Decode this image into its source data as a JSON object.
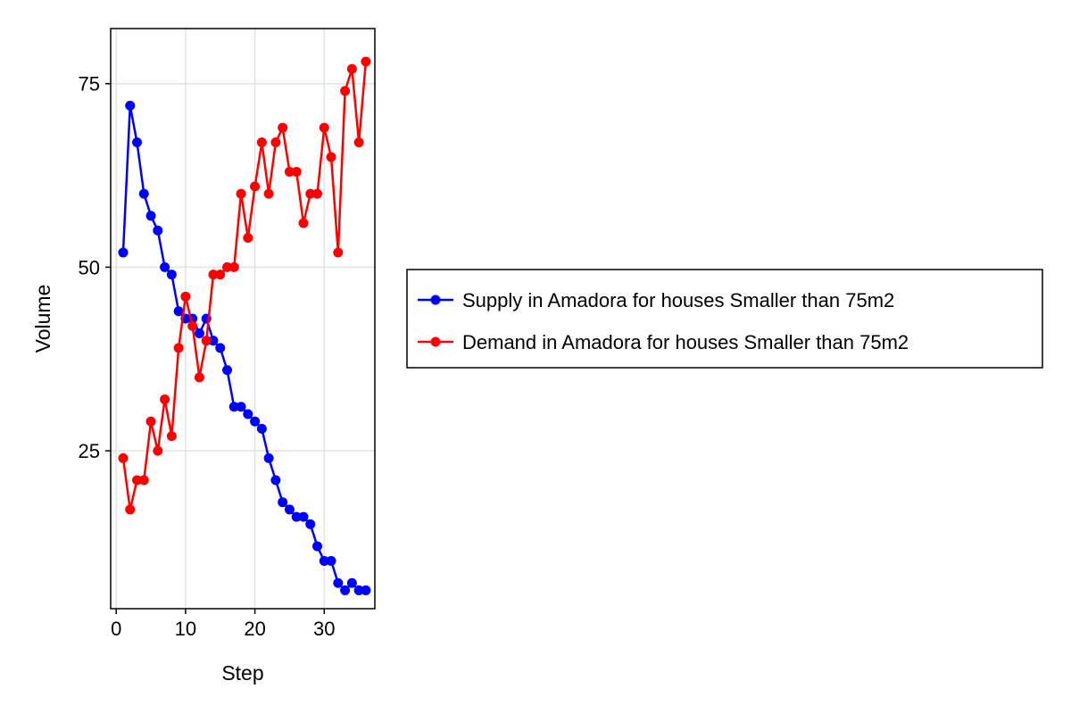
{
  "chart_data": {
    "type": "line",
    "xlabel": "Step",
    "ylabel": "Volume",
    "xlim": [
      -0.8,
      37.3
    ],
    "ylim": [
      3.5,
      82.5
    ],
    "xticks": [
      0,
      10,
      20,
      30
    ],
    "yticks": [
      25,
      50,
      75
    ],
    "grid": true,
    "legend_position": "right",
    "x": [
      1,
      2,
      3,
      4,
      5,
      6,
      7,
      8,
      9,
      10,
      11,
      12,
      13,
      14,
      15,
      16,
      17,
      18,
      19,
      20,
      21,
      22,
      23,
      24,
      25,
      26,
      27,
      28,
      29,
      30,
      31,
      32,
      33,
      34,
      35,
      36
    ],
    "series": [
      {
        "name": "Supply in Amadora for houses Smaller than 75m2",
        "color": "#0000ff",
        "values": [
          52,
          72,
          67,
          60,
          57,
          55,
          50,
          49,
          44,
          43,
          43,
          41,
          43,
          40,
          39,
          36,
          31,
          31,
          30,
          29,
          28,
          24,
          21,
          18,
          17,
          16,
          16,
          15,
          12,
          10,
          10,
          7,
          6,
          7,
          6,
          6
        ]
      },
      {
        "name": "Demand in Amadora for houses Smaller than 75m2",
        "color": "#ff0000",
        "values": [
          24,
          17,
          21,
          21,
          29,
          25,
          32,
          27,
          39,
          46,
          42,
          35,
          40,
          49,
          49,
          50,
          50,
          60,
          54,
          61,
          67,
          60,
          67,
          69,
          63,
          63,
          56,
          60,
          60,
          69,
          65,
          52,
          74,
          77,
          67,
          78
        ]
      }
    ]
  }
}
